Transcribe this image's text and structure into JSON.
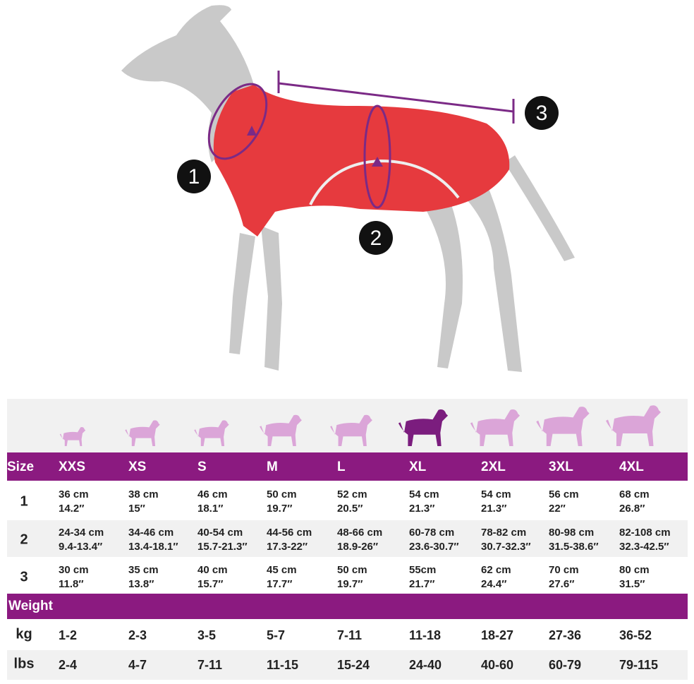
{
  "markers": [
    "1",
    "2",
    "3"
  ],
  "size_table": {
    "header": "Size",
    "sizes": [
      "XXS",
      "XS",
      "S",
      "M",
      "L",
      "XL",
      "2XL",
      "3XL",
      "4XL"
    ],
    "rows": [
      {
        "label": "1",
        "cells": [
          [
            "36 cm",
            "14.2″"
          ],
          [
            "38 cm",
            "15″"
          ],
          [
            "46 cm",
            "18.1″"
          ],
          [
            "50 cm",
            "19.7″"
          ],
          [
            "52 cm",
            "20.5″"
          ],
          [
            "54 cm",
            "21.3″"
          ],
          [
            "54 cm",
            "21.3″"
          ],
          [
            "56 cm",
            "22″"
          ],
          [
            "68 cm",
            "26.8″"
          ]
        ]
      },
      {
        "label": "2",
        "cells": [
          [
            "24-34 cm",
            "9.4-13.4″"
          ],
          [
            "34-46 cm",
            "13.4-18.1″"
          ],
          [
            "40-54 cm",
            "15.7-21.3″"
          ],
          [
            "44-56 cm",
            "17.3-22″"
          ],
          [
            "48-66 cm",
            "18.9-26″"
          ],
          [
            "60-78 cm",
            "23.6-30.7″"
          ],
          [
            "78-82 cm",
            "30.7-32.3″"
          ],
          [
            "80-98 cm",
            "31.5-38.6″"
          ],
          [
            "82-108 cm",
            "32.3-42.5″"
          ]
        ]
      },
      {
        "label": "3",
        "cells": [
          [
            "30 cm",
            "11.8″"
          ],
          [
            "35 cm",
            "13.8″"
          ],
          [
            "40 cm",
            "15.7″"
          ],
          [
            "45 cm",
            "17.7″"
          ],
          [
            "50 cm",
            "19.7″"
          ],
          [
            "55cm",
            "21.7″"
          ],
          [
            "62 cm",
            "24.4″"
          ],
          [
            "70 cm",
            "27.6″"
          ],
          [
            "80 cm",
            "31.5″"
          ]
        ]
      }
    ]
  },
  "weight_table": {
    "header": "Weight",
    "rows": [
      {
        "label": "kg",
        "cells": [
          "1-2",
          "2-3",
          "3-5",
          "5-7",
          "7-11",
          "11-18",
          "18-27",
          "27-36",
          "36-52"
        ]
      },
      {
        "label": "lbs",
        "cells": [
          "2-4",
          "4-7",
          "7-11",
          "11-15",
          "15-24",
          "24-40",
          "40-60",
          "60-79",
          "79-115"
        ]
      }
    ]
  }
}
